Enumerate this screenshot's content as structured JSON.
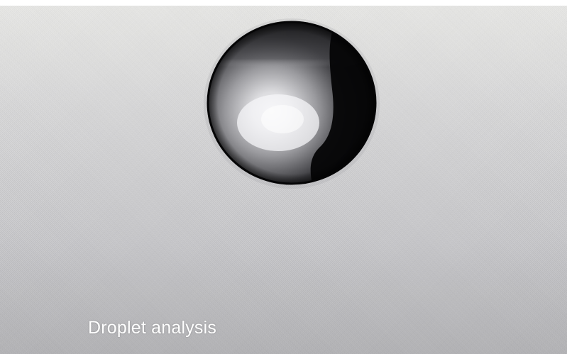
{
  "caption": {
    "text": "Droplet analysis",
    "color": "#ffffff"
  },
  "image": {
    "subject": "droplet",
    "colors": {
      "background_top": "#e9e9e7",
      "background_bottom": "#b3b3b6",
      "droplet_dark": "#0a0a0c",
      "droplet_highlight": "#f2f2f4"
    }
  }
}
